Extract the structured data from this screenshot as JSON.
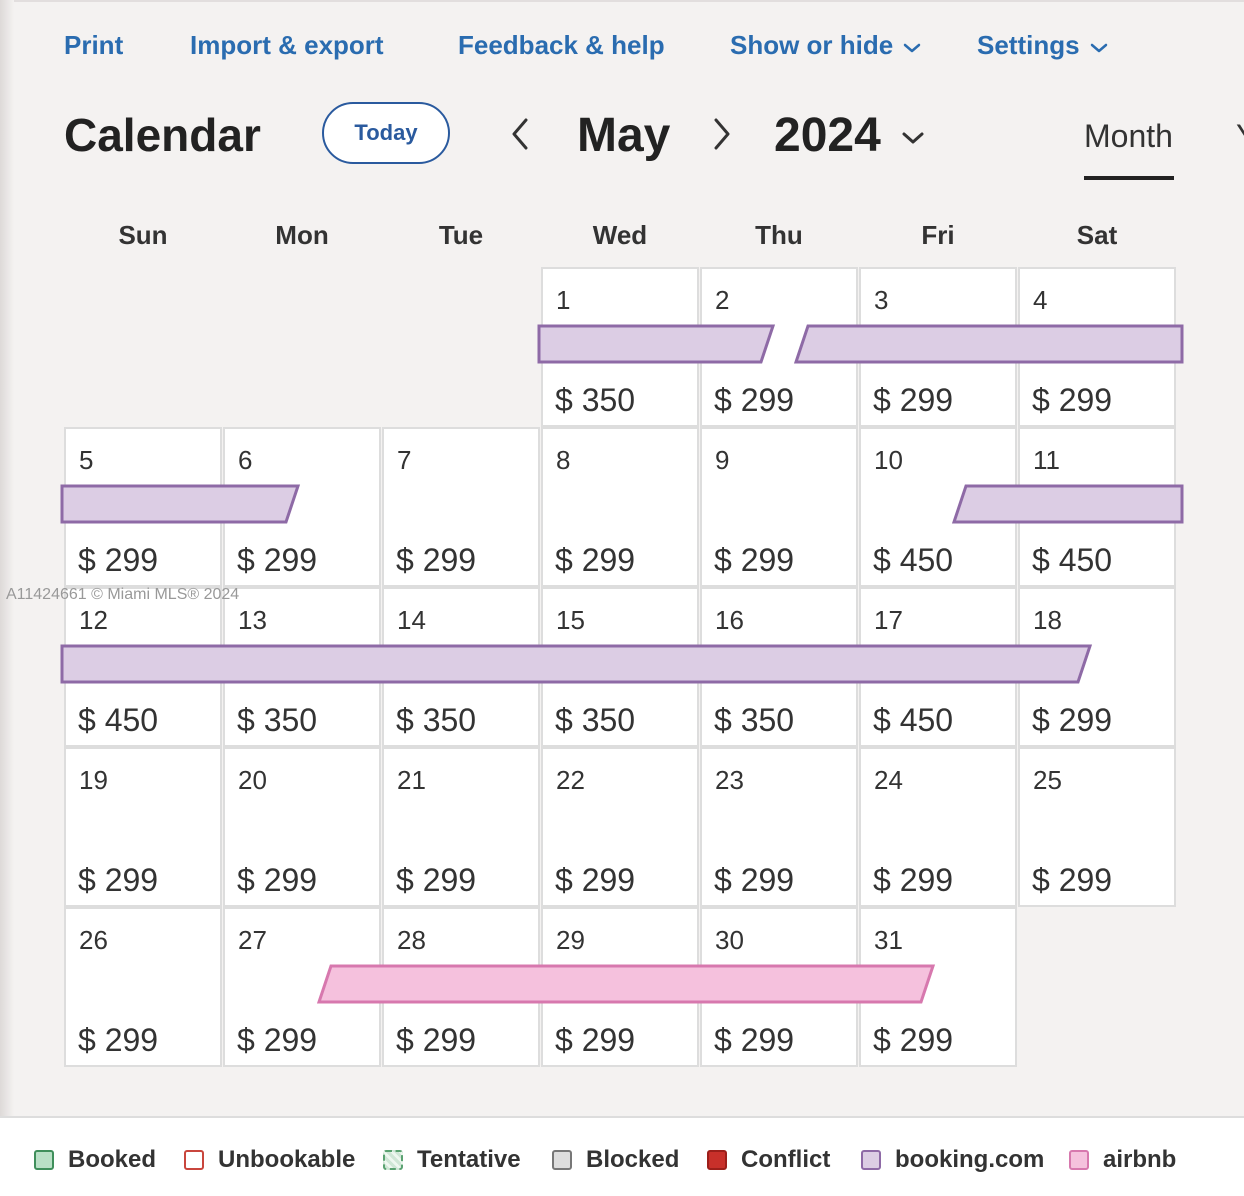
{
  "topnav": {
    "print": "Print",
    "import_export": "Import & export",
    "feedback": "Feedback & help",
    "show_hide": "Show or hide",
    "settings": "Settings"
  },
  "header": {
    "title": "Calendar",
    "today": "Today",
    "month": "May",
    "year": "2024",
    "view_month": "Month",
    "view_next_partial": "Y"
  },
  "weekdays": [
    "Sun",
    "Mon",
    "Tue",
    "Wed",
    "Thu",
    "Fri",
    "Sat"
  ],
  "weeks": [
    [
      null,
      null,
      null,
      {
        "day": "1",
        "price": "$ 350"
      },
      {
        "day": "2",
        "price": "$ 299"
      },
      {
        "day": "3",
        "price": "$ 299"
      },
      {
        "day": "4",
        "price": "$ 299"
      }
    ],
    [
      {
        "day": "5",
        "price": "$ 299"
      },
      {
        "day": "6",
        "price": "$ 299"
      },
      {
        "day": "7",
        "price": "$ 299"
      },
      {
        "day": "8",
        "price": "$ 299"
      },
      {
        "day": "9",
        "price": "$ 299"
      },
      {
        "day": "10",
        "price": "$ 450"
      },
      {
        "day": "11",
        "price": "$ 450"
      }
    ],
    [
      {
        "day": "12",
        "price": "$ 450"
      },
      {
        "day": "13",
        "price": "$ 350"
      },
      {
        "day": "14",
        "price": "$ 350"
      },
      {
        "day": "15",
        "price": "$ 350"
      },
      {
        "day": "16",
        "price": "$ 350"
      },
      {
        "day": "17",
        "price": "$ 450"
      },
      {
        "day": "18",
        "price": "$ 299"
      }
    ],
    [
      {
        "day": "19",
        "price": "$ 299"
      },
      {
        "day": "20",
        "price": "$ 299"
      },
      {
        "day": "21",
        "price": "$ 299"
      },
      {
        "day": "22",
        "price": "$ 299"
      },
      {
        "day": "23",
        "price": "$ 299"
      },
      {
        "day": "24",
        "price": "$ 299"
      },
      {
        "day": "25",
        "price": "$ 299"
      }
    ],
    [
      {
        "day": "26",
        "price": "$ 299"
      },
      {
        "day": "27",
        "price": "$ 299"
      },
      {
        "day": "28",
        "price": "$ 299"
      },
      {
        "day": "29",
        "price": "$ 299"
      },
      {
        "day": "30",
        "price": "$ 299"
      },
      {
        "day": "31",
        "price": "$ 299"
      },
      null
    ]
  ],
  "bookings": [
    {
      "source": "booking.com",
      "from": "May 1",
      "to": "May 2"
    },
    {
      "source": "booking.com",
      "from": "May 2",
      "to": "May 6"
    },
    {
      "source": "booking.com",
      "from": "May 10",
      "to": "May 18"
    },
    {
      "source": "airbnb",
      "from": "May 27",
      "to": "May 31"
    }
  ],
  "watermark": "A11424661 © Miami MLS® 2024",
  "legend": [
    {
      "label": "Booked",
      "fill": "#b9e0c6",
      "border": "#3f8f5b"
    },
    {
      "label": "Unbookable",
      "fill": "#ffffff",
      "border": "#c9463d"
    },
    {
      "label": "Tentative",
      "fill": "#cfe6d6",
      "border": "#5aa271"
    },
    {
      "label": "Blocked",
      "fill": "#dddddd",
      "border": "#777777"
    },
    {
      "label": "Conflict",
      "fill": "#c8302a",
      "border": "#9c1f1a"
    },
    {
      "label": "booking.com",
      "fill": "#dccde4",
      "border": "#8e6aa6"
    },
    {
      "label": "airbnb",
      "fill": "#f5c1dd",
      "border": "#d778ae"
    }
  ],
  "colors": {
    "link": "#2a6cb0",
    "booking_fill": "#dccde4",
    "booking_border": "#8e6aa6",
    "airbnb_fill": "#f5c1dd",
    "airbnb_border": "#d778ae"
  }
}
